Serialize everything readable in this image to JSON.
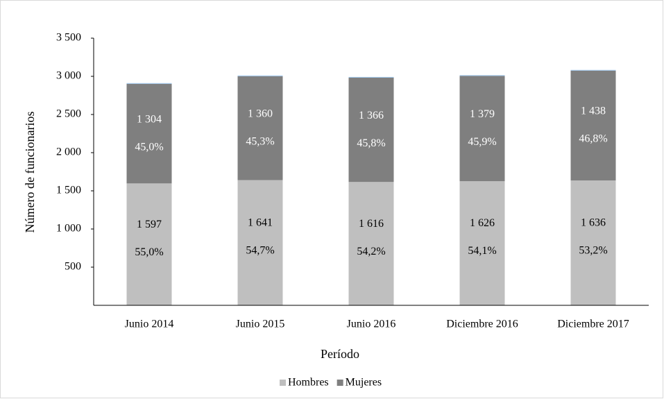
{
  "chart_data": {
    "type": "stacked_bar",
    "x_label": "Período",
    "y_label": "Número de funcionarios",
    "categories": [
      "Junio 2014",
      "Junio 2015",
      "Junio 2016",
      "Diciembre 2016",
      "Diciembre 2017"
    ],
    "series": [
      {
        "name": "Hombres",
        "color": "#bfbfbf",
        "label_color": "#000000",
        "values": [
          1597,
          1641,
          1616,
          1626,
          1636
        ],
        "value_labels": [
          "1 597",
          "1 641",
          "1 616",
          "1 626",
          "1 636"
        ],
        "percentages": [
          55.0,
          54.7,
          54.2,
          54.1,
          53.2
        ],
        "percentage_labels": [
          "55,0%",
          "54,7%",
          "54,2%",
          "54,1%",
          "53,2%"
        ]
      },
      {
        "name": "Mujeres",
        "color": "#7f7f7f",
        "label_color": "#ffffff",
        "values": [
          1304,
          1360,
          1366,
          1379,
          1438
        ],
        "value_labels": [
          "1 304",
          "1 360",
          "1 366",
          "1 379",
          "1 438"
        ],
        "percentages": [
          45.0,
          45.3,
          45.8,
          45.9,
          46.8
        ],
        "percentage_labels": [
          "45,0%",
          "45,3%",
          "45,8%",
          "45,9%",
          "46,8%"
        ]
      },
      {
        "color": "#9dc3e6",
        "values": [
          10,
          10,
          10,
          10,
          10
        ]
      }
    ],
    "ylim": [
      0,
      3500
    ],
    "yticks": [
      500,
      {
        "value": 1000,
        "label": "1 000"
      },
      {
        "value": 1500,
        "label": "1 500"
      },
      {
        "value": 2000,
        "label": "2 000"
      },
      {
        "value": 2500,
        "label": "2 500"
      },
      {
        "value": 3000,
        "label": "3 000"
      },
      {
        "value": 3500,
        "label": "3 500"
      }
    ],
    "grid": false,
    "legend": "bottom"
  }
}
